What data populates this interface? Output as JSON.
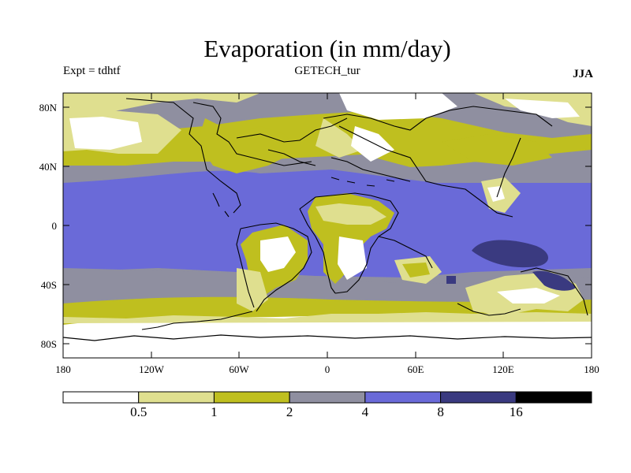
{
  "title": "Evaporation (in mm/day)",
  "experiment": "Expt = tdhtf",
  "subtitle": "GETECH_tur",
  "season": "JJA",
  "map": {
    "lat_labels": [
      "80N",
      "40N",
      "0",
      "40S",
      "80S"
    ],
    "lon_labels": [
      "180",
      "120W",
      "60W",
      "0",
      "60E",
      "120E",
      "180"
    ]
  },
  "colorbar": {
    "labels": [
      "0.5",
      "1",
      "2",
      "4",
      "8",
      "16"
    ],
    "colors": [
      "#ffffff",
      "#dfdf8f",
      "#bfbf1f",
      "#8f8fa0",
      "#6a6ad8",
      "#3a3a80",
      "#000000"
    ]
  },
  "chart_data": {
    "type": "heatmap",
    "title": "Evaporation (in mm/day)",
    "subtitle": "GETECH_tur",
    "xlabel": "",
    "ylabel": "",
    "xlim": [
      -180,
      180
    ],
    "ylim": [
      -90,
      90
    ],
    "bins": [
      0,
      0.5,
      1,
      2,
      4,
      8,
      16
    ],
    "bin_labels": [
      "0.5",
      "1",
      "2",
      "4",
      "8",
      "16"
    ],
    "color_scale": [
      "#ffffff",
      "#dfdf8f",
      "#bfbf1f",
      "#8f8fa0",
      "#6a6ad8",
      "#3a3a80",
      "#000000"
    ]
  }
}
